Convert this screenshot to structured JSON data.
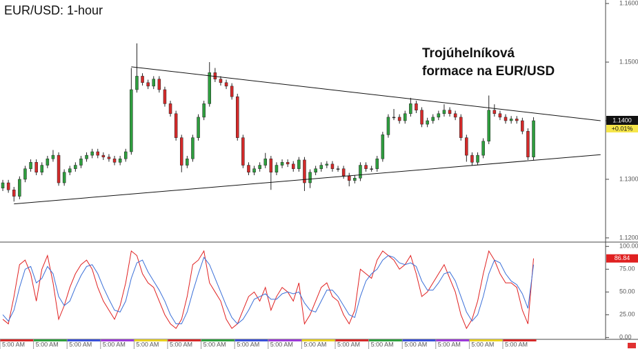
{
  "chart_data": [
    {
      "type": "candlestick",
      "title": "EUR/USD: 1-hour",
      "annotation": [
        "Trojúhelníková",
        "formace na EUR/USD"
      ],
      "categories": [
        "5:00 AM",
        null,
        null,
        null,
        null,
        null,
        "5:00 AM",
        null,
        null,
        null,
        null,
        null,
        "5:00 AM",
        null,
        null,
        null,
        null,
        null,
        "5:00 AM",
        null,
        null,
        null,
        null,
        null,
        "5:00 AM",
        null,
        null,
        null,
        null,
        null,
        "5:00 AM",
        null,
        null,
        null,
        null,
        null,
        "5:00 AM",
        null,
        null,
        null,
        null,
        null,
        "5:00 AM",
        null,
        null,
        null,
        null,
        null,
        "5:00 AM",
        null,
        null,
        null,
        null,
        null,
        "5:00 AM",
        null,
        null,
        null,
        null,
        null,
        "5:00 AM",
        null,
        null,
        null,
        null,
        null,
        "5:00 AM",
        null,
        null,
        null,
        null,
        null,
        "5:00 AM",
        null,
        null,
        null,
        null,
        null,
        "5:00 AM",
        null,
        null,
        null,
        null,
        null,
        "5:00 AM",
        null,
        null,
        null,
        null,
        null,
        "5:00 AM",
        null,
        null,
        null,
        null,
        null
      ],
      "open": [
        1.1285,
        1.1294,
        1.1282,
        1.1271,
        1.13,
        1.1318,
        1.1329,
        1.1312,
        1.1324,
        1.1335,
        1.1341,
        1.1294,
        1.1312,
        1.1318,
        1.1324,
        1.1335,
        1.1341,
        1.1347,
        1.1341,
        1.1338,
        1.1335,
        1.1329,
        1.1335,
        1.1347,
        1.1453,
        1.1476,
        1.1465,
        1.1459,
        1.1471,
        1.1453,
        1.1429,
        1.1412,
        1.1371,
        1.1324,
        1.1335,
        1.1371,
        1.1406,
        1.1429,
        1.1482,
        1.1471,
        1.1465,
        1.1459,
        1.1441,
        1.1371,
        1.1324,
        1.1312,
        1.1318,
        1.1324,
        1.1335,
        1.1312,
        1.1324,
        1.1329,
        1.1326,
        1.1318,
        1.1333,
        1.1294,
        1.1312,
        1.1318,
        1.1324,
        1.1326,
        1.1318,
        1.1318,
        1.1306,
        1.1298,
        1.1302,
        1.1324,
        1.1318,
        1.1318,
        1.1335,
        1.1376,
        1.1406,
        1.1406,
        1.14,
        1.1412,
        1.1429,
        1.1418,
        1.1394,
        1.14,
        1.1406,
        1.1412,
        1.1418,
        1.1412,
        1.1406,
        1.1371,
        1.1341,
        1.1329,
        1.1341,
        1.1365,
        1.1418,
        1.1412,
        1.1406,
        1.14,
        1.1403,
        1.14,
        1.1382,
        1.1338
      ],
      "high": [
        1.1299,
        1.1299,
        1.1287,
        1.1305,
        1.1323,
        1.1334,
        1.1334,
        1.1329,
        1.134,
        1.135,
        1.1346,
        1.1317,
        1.1323,
        1.1329,
        1.134,
        1.1346,
        1.1352,
        1.1352,
        1.1346,
        1.1343,
        1.134,
        1.134,
        1.1352,
        1.149,
        1.1532,
        1.1481,
        1.147,
        1.1476,
        1.1476,
        1.1458,
        1.1434,
        1.1417,
        1.1376,
        1.134,
        1.1376,
        1.1411,
        1.1434,
        1.15,
        1.149,
        1.1476,
        1.147,
        1.1464,
        1.1446,
        1.1376,
        1.1329,
        1.1323,
        1.1329,
        1.1345,
        1.134,
        1.1329,
        1.1334,
        1.1334,
        1.1331,
        1.1338,
        1.1338,
        1.1317,
        1.1323,
        1.1329,
        1.1331,
        1.1331,
        1.1323,
        1.1323,
        1.1311,
        1.1307,
        1.1329,
        1.1329,
        1.1323,
        1.134,
        1.1381,
        1.1411,
        1.142,
        1.1411,
        1.1417,
        1.1439,
        1.1434,
        1.1423,
        1.1405,
        1.1411,
        1.1417,
        1.1428,
        1.1423,
        1.1417,
        1.1411,
        1.1376,
        1.1346,
        1.1346,
        1.137,
        1.1443,
        1.1428,
        1.1417,
        1.1411,
        1.1408,
        1.1408,
        1.1405,
        1.1387,
        1.1406
      ],
      "low": [
        1.128,
        1.1277,
        1.1262,
        1.1266,
        1.1295,
        1.1313,
        1.1307,
        1.1307,
        1.1319,
        1.133,
        1.1289,
        1.1289,
        1.1307,
        1.1313,
        1.1319,
        1.133,
        1.1336,
        1.1336,
        1.1333,
        1.133,
        1.1324,
        1.1324,
        1.133,
        1.1342,
        1.1448,
        1.146,
        1.1454,
        1.1454,
        1.1448,
        1.1424,
        1.1407,
        1.1366,
        1.1312,
        1.1319,
        1.133,
        1.1366,
        1.1401,
        1.1424,
        1.1466,
        1.146,
        1.1454,
        1.1436,
        1.1366,
        1.1319,
        1.1307,
        1.1307,
        1.1313,
        1.1319,
        1.1282,
        1.1307,
        1.1319,
        1.1321,
        1.1313,
        1.1313,
        1.128,
        1.1285,
        1.1307,
        1.1313,
        1.1319,
        1.1313,
        1.1313,
        1.1301,
        1.1288,
        1.1293,
        1.1297,
        1.1313,
        1.1313,
        1.1313,
        1.133,
        1.1371,
        1.1401,
        1.1395,
        1.1395,
        1.1407,
        1.1413,
        1.1389,
        1.1389,
        1.1395,
        1.1401,
        1.1407,
        1.1407,
        1.1401,
        1.1366,
        1.133,
        1.1324,
        1.1324,
        1.1336,
        1.136,
        1.1407,
        1.1401,
        1.1395,
        1.1395,
        1.1395,
        1.1377,
        1.1333,
        1.1333
      ],
      "close": [
        1.1294,
        1.1282,
        1.1271,
        1.13,
        1.1318,
        1.1329,
        1.1312,
        1.1324,
        1.1335,
        1.1341,
        1.1294,
        1.1312,
        1.1318,
        1.1324,
        1.1335,
        1.1341,
        1.1347,
        1.1341,
        1.1338,
        1.1335,
        1.1329,
        1.1335,
        1.1347,
        1.1453,
        1.1476,
        1.1465,
        1.1459,
        1.1471,
        1.1453,
        1.1429,
        1.1412,
        1.1371,
        1.1324,
        1.1335,
        1.1371,
        1.1406,
        1.1429,
        1.1482,
        1.1471,
        1.1465,
        1.1459,
        1.1441,
        1.1371,
        1.1324,
        1.1312,
        1.1318,
        1.1324,
        1.1335,
        1.1312,
        1.1324,
        1.1329,
        1.1326,
        1.1318,
        1.1333,
        1.1294,
        1.1312,
        1.1318,
        1.1324,
        1.1326,
        1.1318,
        1.1318,
        1.1306,
        1.1298,
        1.1302,
        1.1324,
        1.1318,
        1.1318,
        1.1335,
        1.1376,
        1.1406,
        1.1406,
        1.14,
        1.1412,
        1.1429,
        1.1418,
        1.1394,
        1.14,
        1.1406,
        1.1412,
        1.1418,
        1.1412,
        1.1406,
        1.1371,
        1.1341,
        1.1329,
        1.1341,
        1.1365,
        1.1418,
        1.1412,
        1.1406,
        1.14,
        1.1403,
        1.14,
        1.1382,
        1.1338,
        1.14
      ],
      "up_color": "#2e9e3e",
      "down_color": "#d42a2a",
      "trendlines": [
        {
          "x": [
            23,
            107
          ],
          "y": [
            1.1492,
            1.14
          ]
        },
        {
          "x": [
            2,
            107
          ],
          "y": [
            1.1258,
            1.1342
          ]
        }
      ],
      "ylim": [
        1.1194,
        1.1606
      ],
      "yticks": [
        {
          "value": 1.16,
          "label": "1.1600"
        },
        {
          "value": 1.15,
          "label": "1.1500"
        },
        {
          "value": 1.14,
          "label": "1.1400"
        },
        {
          "value": 1.13,
          "label": "1.1300"
        },
        {
          "value": 1.12,
          "label": "1.1200"
        }
      ],
      "price_marker": {
        "value": 1.14,
        "label": "1.1400"
      },
      "change_marker": {
        "value": 0.01,
        "label": "+0.01%"
      }
    },
    {
      "type": "line",
      "series": [
        {
          "color": "#e02020",
          "values": [
            20,
            15,
            45,
            80,
            85,
            70,
            40,
            75,
            90,
            60,
            20,
            35,
            55,
            70,
            80,
            85,
            75,
            55,
            40,
            30,
            20,
            35,
            60,
            95,
            90,
            70,
            60,
            55,
            40,
            25,
            15,
            10,
            20,
            45,
            80,
            85,
            95,
            60,
            50,
            40,
            20,
            10,
            15,
            30,
            45,
            50,
            40,
            55,
            30,
            45,
            55,
            50,
            40,
            60,
            15,
            25,
            40,
            55,
            60,
            45,
            40,
            25,
            15,
            30,
            75,
            70,
            65,
            85,
            95,
            90,
            85,
            75,
            80,
            90,
            70,
            45,
            50,
            60,
            70,
            80,
            65,
            50,
            25,
            10,
            20,
            40,
            70,
            95,
            85,
            70,
            60,
            60,
            55,
            30,
            15,
            86.84
          ]
        },
        {
          "color": "#3a6fd8",
          "values": [
            25,
            18,
            30,
            55,
            75,
            78,
            60,
            65,
            78,
            70,
            45,
            35,
            40,
            55,
            68,
            78,
            80,
            70,
            55,
            42,
            30,
            28,
            40,
            65,
            82,
            85,
            72,
            62,
            52,
            40,
            25,
            15,
            15,
            28,
            50,
            70,
            88,
            80,
            65,
            50,
            35,
            22,
            15,
            20,
            30,
            42,
            45,
            48,
            42,
            42,
            48,
            50,
            48,
            50,
            38,
            30,
            28,
            40,
            52,
            52,
            45,
            35,
            25,
            22,
            45,
            62,
            70,
            75,
            85,
            90,
            88,
            82,
            80,
            82,
            78,
            62,
            52,
            52,
            60,
            70,
            72,
            62,
            45,
            28,
            18,
            25,
            45,
            70,
            85,
            82,
            70,
            62,
            58,
            48,
            32,
            80
          ]
        }
      ],
      "ylim": [
        -2,
        104
      ],
      "yticks": [
        {
          "value": 100,
          "label": "100.00"
        },
        {
          "value": 75,
          "label": "75.00"
        },
        {
          "value": 50,
          "label": "50.00"
        },
        {
          "value": 25,
          "label": "25.00"
        },
        {
          "value": 0,
          "label": "0.00"
        }
      ],
      "value_marker": 86.84
    }
  ]
}
